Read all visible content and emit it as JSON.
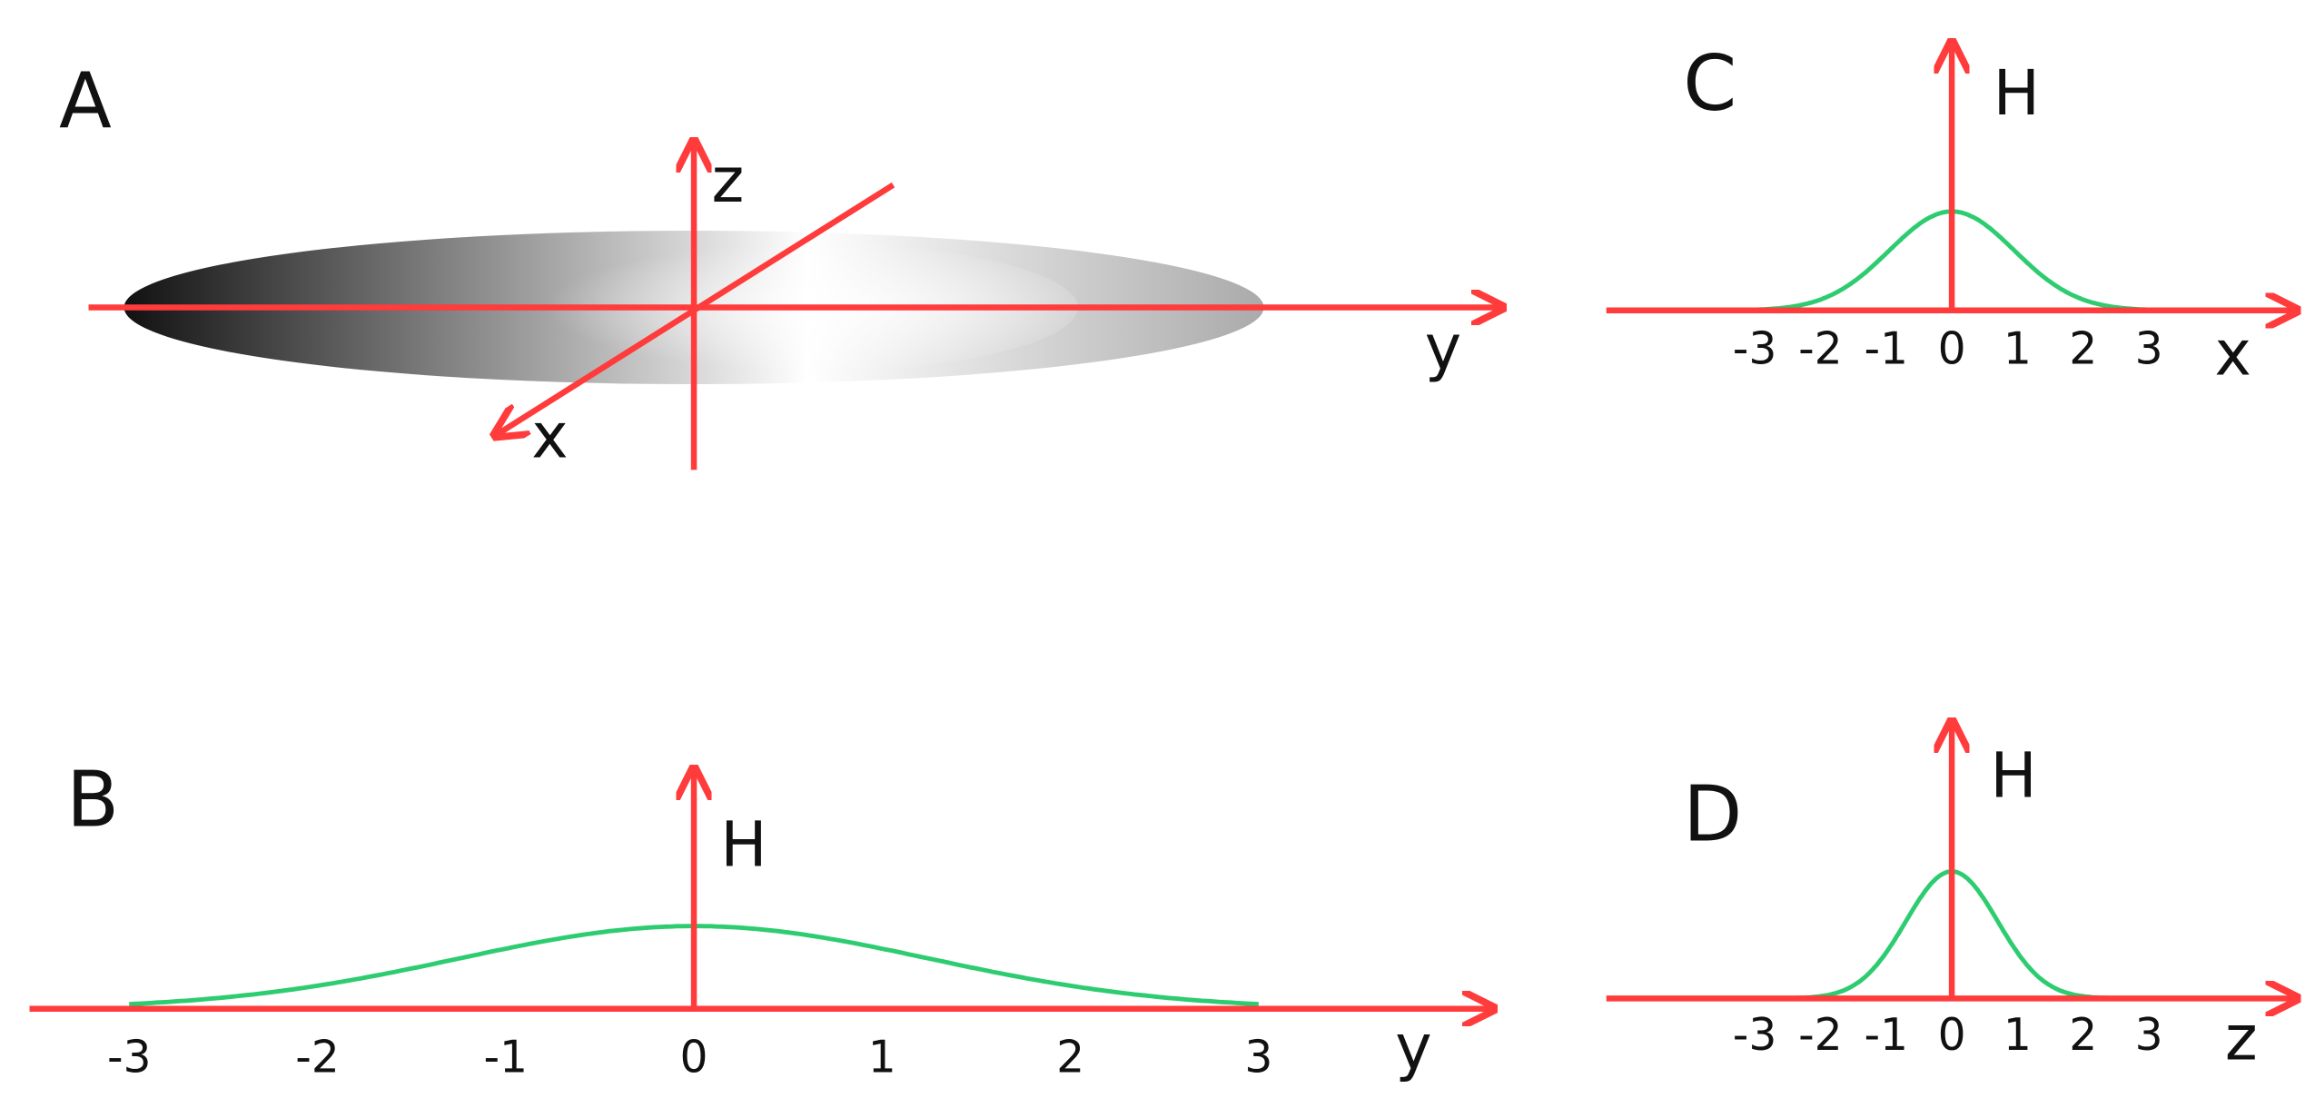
{
  "panels": [
    {
      "label": "A",
      "axis_y": "y",
      "axis_z": "z",
      "axis_x": "x"
    },
    {
      "label": "B",
      "axis_label": "y",
      "height_label": "H",
      "ticks": [
        -3,
        -2,
        -1,
        0,
        1,
        2,
        3
      ]
    },
    {
      "label": "C",
      "axis_label": "x",
      "height_label": "H",
      "ticks": [
        -3,
        -2,
        -1,
        0,
        1,
        2,
        3
      ]
    },
    {
      "label": "D",
      "axis_label": "z",
      "height_label": "H",
      "ticks": [
        -3,
        -2,
        -1,
        0,
        1,
        2,
        3
      ]
    }
  ]
}
